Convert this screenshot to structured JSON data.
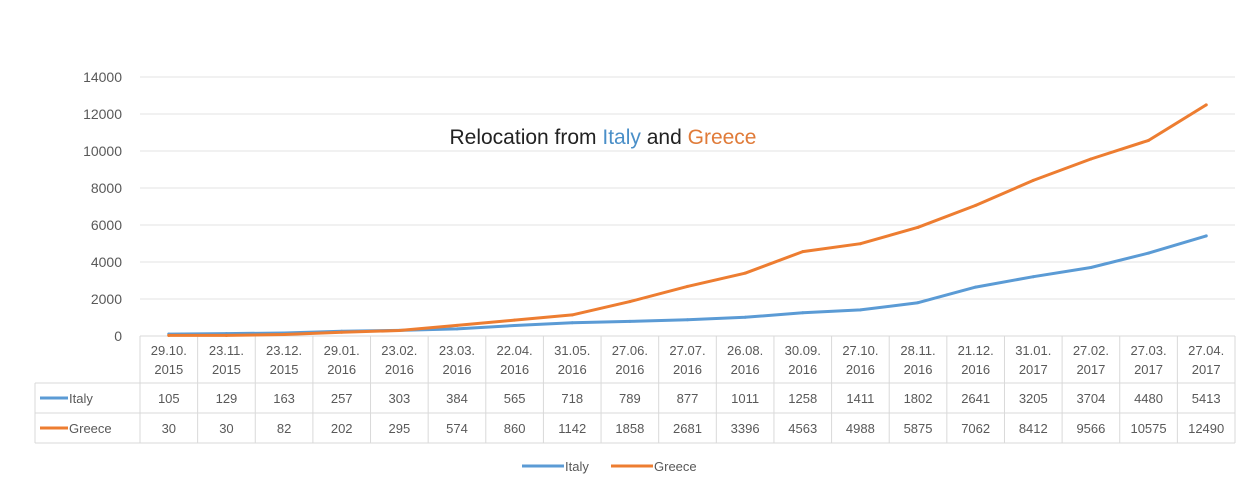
{
  "chart_data": {
    "type": "line",
    "title_parts": [
      {
        "text": "Relocation from ",
        "color": "#222222"
      },
      {
        "text": "Italy",
        "color": "#4a8fc8"
      },
      {
        "text": " and ",
        "color": "#222222"
      },
      {
        "text": "Greece",
        "color": "#e07b39"
      }
    ],
    "categories": [
      [
        "29.10.",
        "2015"
      ],
      [
        "23.11.",
        "2015"
      ],
      [
        "23.12.",
        "2015"
      ],
      [
        "29.01.",
        "2016"
      ],
      [
        "23.02.",
        "2016"
      ],
      [
        "23.03.",
        "2016"
      ],
      [
        "22.04.",
        "2016"
      ],
      [
        "31.05.",
        "2016"
      ],
      [
        "27.06.",
        "2016"
      ],
      [
        "27.07.",
        "2016"
      ],
      [
        "26.08.",
        "2016"
      ],
      [
        "30.09.",
        "2016"
      ],
      [
        "27.10.",
        "2016"
      ],
      [
        "28.11.",
        "2016"
      ],
      [
        "21.12.",
        "2016"
      ],
      [
        "31.01.",
        "2017"
      ],
      [
        "27.02.",
        "2017"
      ],
      [
        "27.03.",
        "2017"
      ],
      [
        "27.04.",
        "2017"
      ]
    ],
    "series": [
      {
        "name": "Italy",
        "color": "#5b9bd5",
        "values": [
          105,
          129,
          163,
          257,
          303,
          384,
          565,
          718,
          789,
          877,
          1011,
          1258,
          1411,
          1802,
          2641,
          3205,
          3704,
          4480,
          5413
        ]
      },
      {
        "name": "Greece",
        "color": "#ed7d31",
        "values": [
          30,
          30,
          82,
          202,
          295,
          574,
          860,
          1142,
          1858,
          2681,
          3396,
          4563,
          4988,
          5875,
          7062,
          8412,
          9566,
          10575,
          12490
        ]
      }
    ],
    "ylim": [
      0,
      14000
    ],
    "yticks": [
      0,
      2000,
      4000,
      6000,
      8000,
      10000,
      12000,
      14000
    ],
    "grid": true,
    "legend_position": "bottom",
    "data_table": true
  }
}
